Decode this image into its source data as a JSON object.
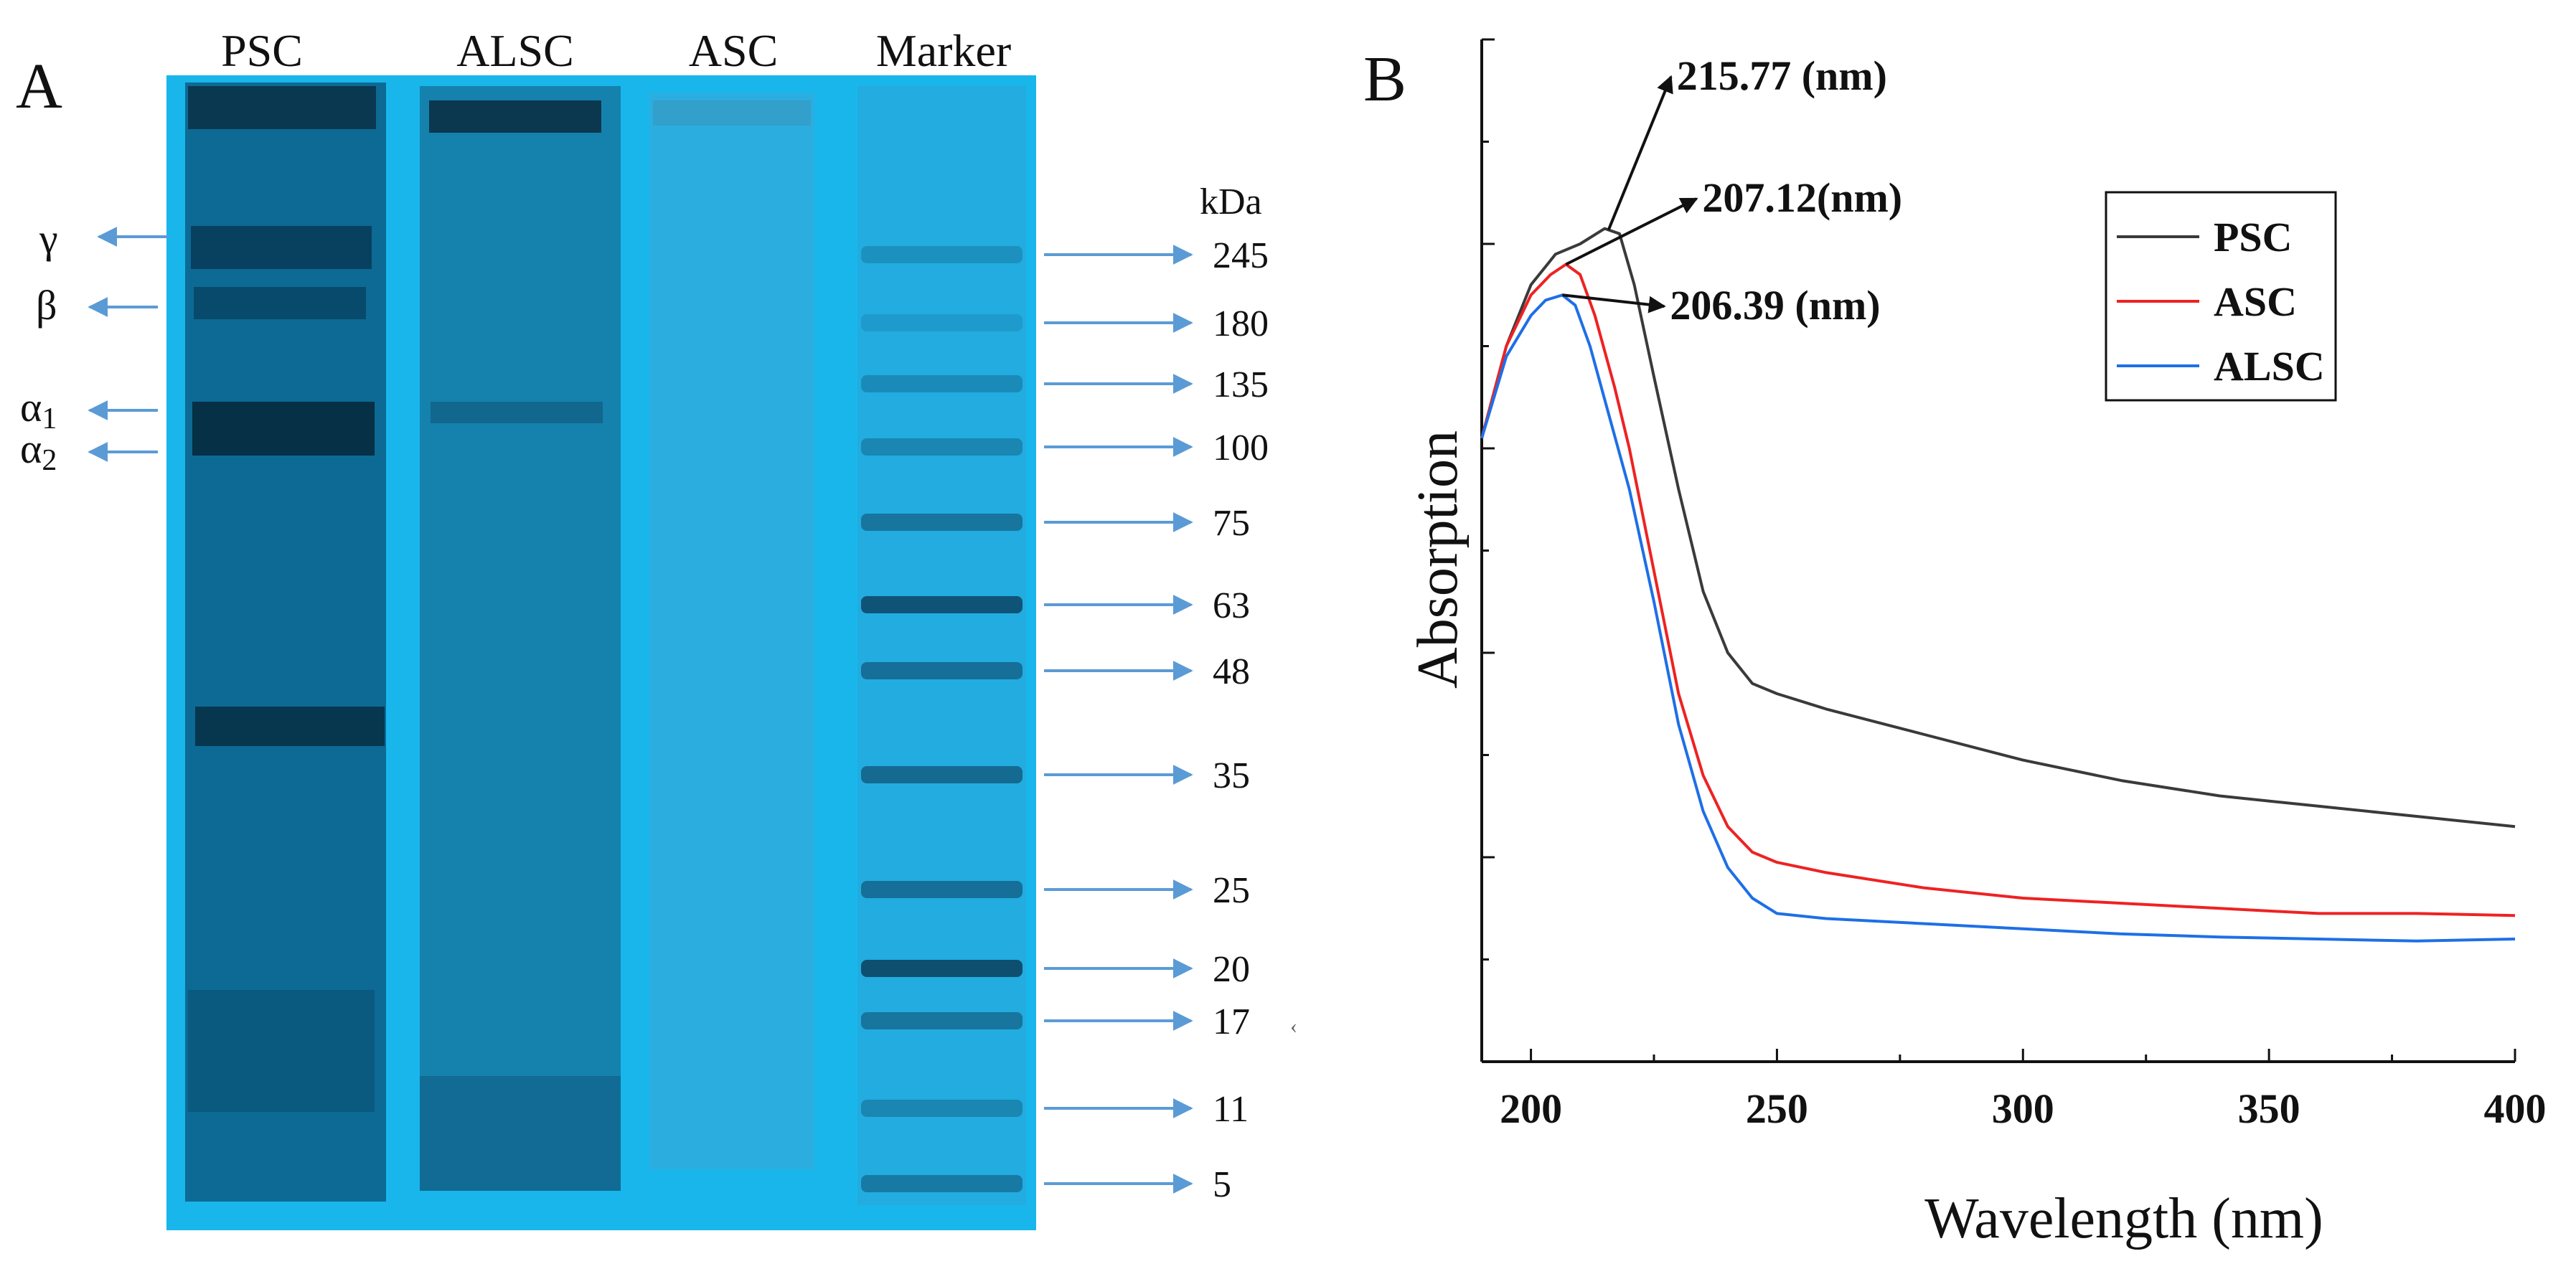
{
  "panel_a": {
    "letter": "A",
    "lanes": [
      "PSC",
      "ALSC",
      "ASC",
      "Marker"
    ],
    "unit_label": "kDa",
    "subunits": [
      {
        "greek": "γ",
        "sub": ""
      },
      {
        "greek": "β",
        "sub": ""
      },
      {
        "greek": "α",
        "sub": "1"
      },
      {
        "greek": "α",
        "sub": "2"
      }
    ],
    "marker_kda": [
      "245",
      "180",
      "135",
      "100",
      "75",
      "63",
      "48",
      "35",
      "25",
      "20",
      "17",
      "11",
      "5"
    ],
    "colors": {
      "gel": "#19b6ec",
      "arrow": "#5b9bd5"
    }
  },
  "chart_data": {
    "type": "line",
    "panel_letter": "B",
    "xlabel": "Wavelength (nm)",
    "ylabel": "Absorption",
    "xlim": [
      190,
      400
    ],
    "ylim": [
      0,
      1
    ],
    "xticks": [
      "200",
      "250",
      "300",
      "350",
      "400"
    ],
    "legend_position": "top-right",
    "series": [
      {
        "name": "PSC",
        "color": "#3a3a3a",
        "x": [
          190,
          195,
          200,
          205,
          210,
          215,
          218,
          221,
          225,
          230,
          235,
          240,
          245,
          250,
          260,
          280,
          300,
          320,
          340,
          360,
          380,
          400
        ],
        "y": [
          0.61,
          0.7,
          0.76,
          0.79,
          0.8,
          0.815,
          0.81,
          0.76,
          0.67,
          0.56,
          0.46,
          0.4,
          0.37,
          0.36,
          0.345,
          0.32,
          0.295,
          0.275,
          0.26,
          0.25,
          0.24,
          0.23
        ]
      },
      {
        "name": "ASC",
        "color": "#ee2222",
        "x": [
          190,
          195,
          200,
          204,
          207.12,
          210,
          213,
          217,
          220,
          225,
          230,
          235,
          240,
          245,
          250,
          260,
          280,
          300,
          320,
          340,
          360,
          380,
          400
        ],
        "y": [
          0.61,
          0.7,
          0.75,
          0.77,
          0.78,
          0.77,
          0.73,
          0.66,
          0.6,
          0.48,
          0.36,
          0.28,
          0.23,
          0.205,
          0.195,
          0.185,
          0.17,
          0.16,
          0.155,
          0.15,
          0.145,
          0.145,
          0.143
        ]
      },
      {
        "name": "ALSC",
        "color": "#1e6fe6",
        "x": [
          190,
          195,
          200,
          203,
          206.39,
          209,
          212,
          216,
          220,
          225,
          230,
          235,
          240,
          245,
          250,
          260,
          280,
          300,
          320,
          340,
          360,
          380,
          400
        ],
        "y": [
          0.61,
          0.69,
          0.73,
          0.745,
          0.75,
          0.74,
          0.7,
          0.63,
          0.56,
          0.45,
          0.33,
          0.245,
          0.19,
          0.16,
          0.145,
          0.14,
          0.135,
          0.13,
          0.125,
          0.122,
          0.12,
          0.118,
          0.12
        ]
      }
    ],
    "annotations": [
      {
        "text": "215.77 (nm)",
        "series": "PSC",
        "x": 215.77
      },
      {
        "text": "207.12(nm)",
        "series": "ASC",
        "x": 207.12
      },
      {
        "text": "206.39 (nm)",
        "series": "ALSC",
        "x": 206.39
      }
    ]
  }
}
